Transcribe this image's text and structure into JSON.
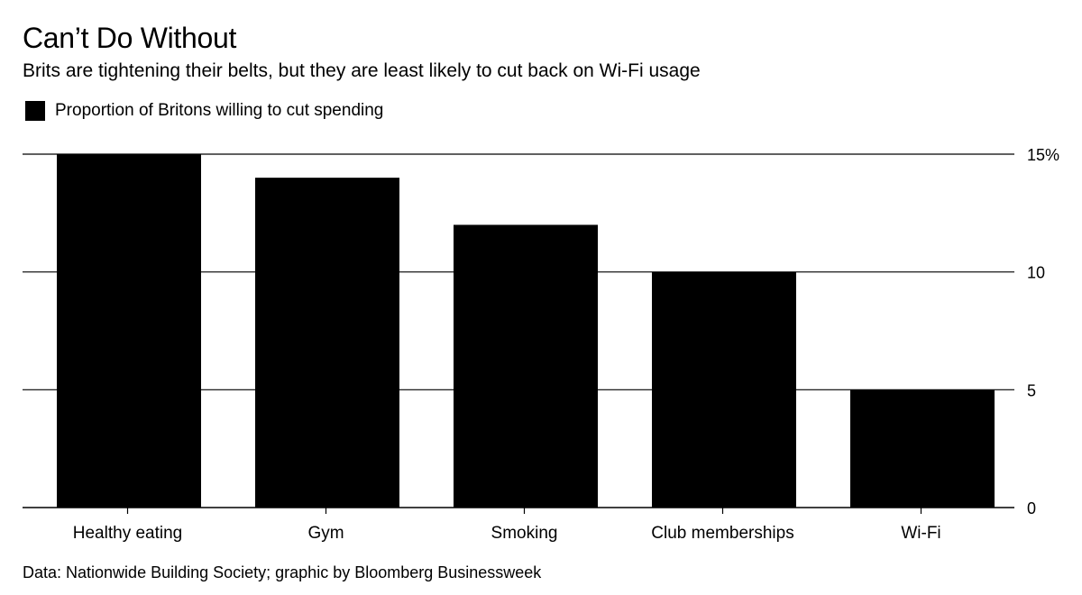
{
  "header": {
    "title": "Can’t Do Without",
    "subtitle": "Brits are tightening their belts, but they are least likely to cut back on Wi-Fi usage"
  },
  "legend": {
    "label": "Proportion of Britons willing to cut spending",
    "color": "#000000"
  },
  "footer": {
    "source": "Data: Nationwide Building Society; graphic by Bloomberg Businessweek"
  },
  "chart_data": {
    "type": "bar",
    "categories": [
      "Healthy eating",
      "Gym",
      "Smoking",
      "Club memberships",
      "Wi-Fi"
    ],
    "series": [
      {
        "name": "Proportion of Britons willing to cut spending",
        "values": [
          15,
          14,
          12,
          10,
          5
        ],
        "color": "#000000"
      }
    ],
    "xlabel": "",
    "ylabel": "",
    "ylim": [
      0,
      15
    ],
    "yticks": [
      0,
      5,
      10,
      15
    ],
    "ytick_labels": [
      "0",
      "5",
      "10",
      "15%"
    ],
    "y_axis_side": "right",
    "grid": true,
    "legend_position": "top-left"
  }
}
